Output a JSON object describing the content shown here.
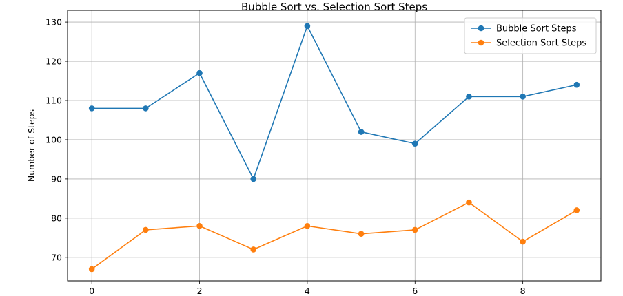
{
  "chart_data": {
    "type": "line",
    "title": "Bubble Sort vs. Selection Sort Steps",
    "xlabel": "",
    "ylabel": "Number of Steps",
    "x": [
      0,
      1,
      2,
      3,
      4,
      5,
      6,
      7,
      8,
      9
    ],
    "xlim": [
      -0.45,
      9.45
    ],
    "ylim": [
      64,
      133
    ],
    "xticks": [
      0,
      2,
      4,
      6,
      8
    ],
    "yticks": [
      70,
      80,
      90,
      100,
      110,
      120,
      130
    ],
    "grid": true,
    "legend_position": "top-right",
    "series": [
      {
        "name": "Bubble Sort Steps",
        "color": "#1f77b4",
        "marker": "circle",
        "values": [
          108,
          108,
          117,
          90,
          129,
          102,
          99,
          111,
          111,
          114
        ]
      },
      {
        "name": "Selection Sort Steps",
        "color": "#ff7f0e",
        "marker": "circle",
        "values": [
          67,
          77,
          78,
          72,
          78,
          76,
          77,
          84,
          74,
          82
        ]
      }
    ]
  }
}
